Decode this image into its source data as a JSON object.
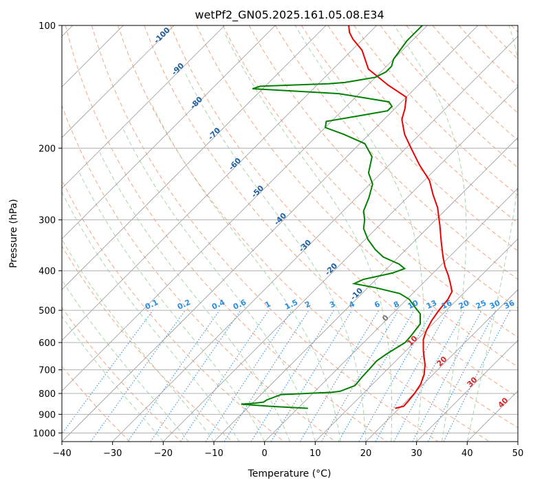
{
  "chart_data": {
    "type": "line",
    "title": "wetPf2_GN05.2025.161.05.08.E34",
    "xlabel": "Temperature (°C)",
    "ylabel": "Pressure (hPa)",
    "xlim": [
      -40,
      50
    ],
    "ylim": [
      1050,
      100
    ],
    "y_scale": "log",
    "x_ticks": [
      -40,
      -30,
      -20,
      -10,
      0,
      10,
      20,
      30,
      40,
      50
    ],
    "y_ticks": [
      100,
      200,
      300,
      400,
      500,
      600,
      700,
      800,
      900,
      1000
    ],
    "grid": true,
    "skew_note": "skew-T log-p diagram",
    "colors": {
      "temperature": "#ee0000",
      "dewpoint": "#008000",
      "isotherm": "#999999",
      "dry_adiabat": "#f4a582",
      "moist_adiabat": "#a6d6a6",
      "mixing_ratio": "#2b8fe0",
      "ccl_label": "#d62728"
    },
    "series": [
      {
        "name": "",
        "role": "temperature",
        "points": [
          [
            19.2,
            870
          ],
          [
            20.5,
            860
          ],
          [
            20.4,
            840
          ],
          [
            20.1,
            800
          ],
          [
            19.5,
            760
          ],
          [
            18.3,
            720
          ],
          [
            16.5,
            680
          ],
          [
            13.5,
            630
          ],
          [
            11.2,
            590
          ],
          [
            10.0,
            560
          ],
          [
            9.1,
            530
          ],
          [
            8.5,
            500
          ],
          [
            8.1,
            470
          ],
          [
            7.4,
            450
          ],
          [
            5.5,
            430
          ],
          [
            3.4,
            410
          ],
          [
            1.0,
            390
          ],
          [
            -1.2,
            370
          ],
          [
            -4.5,
            340
          ],
          [
            -8.0,
            310
          ],
          [
            -12.0,
            280
          ],
          [
            -15.5,
            260
          ],
          [
            -19.0,
            240
          ],
          [
            -24.0,
            220
          ],
          [
            -29.0,
            200
          ],
          [
            -33.0,
            185
          ],
          [
            -36.5,
            170
          ],
          [
            -38.0,
            160
          ],
          [
            -40.0,
            150
          ],
          [
            -46.0,
            140
          ],
          [
            -53.0,
            128
          ],
          [
            -58.0,
            115
          ],
          [
            -62.0,
            108
          ],
          [
            -64.0,
            104
          ],
          [
            -65.5,
            100
          ]
        ]
      },
      {
        "name": "",
        "role": "dewpoint",
        "points": [
          [
            2.0,
            870
          ],
          [
            -6.0,
            860
          ],
          [
            -12.0,
            850
          ],
          [
            -9.5,
            845
          ],
          [
            -8.0,
            840
          ],
          [
            -7.8,
            830
          ],
          [
            -6.0,
            805
          ],
          [
            3.5,
            795
          ],
          [
            5.0,
            790
          ],
          [
            6.8,
            765
          ],
          [
            6.5,
            730
          ],
          [
            6.4,
            700
          ],
          [
            6.2,
            665
          ],
          [
            6.8,
            640
          ],
          [
            7.3,
            625
          ],
          [
            8.2,
            600
          ],
          [
            8.0,
            575
          ],
          [
            7.5,
            540
          ],
          [
            5.5,
            510
          ],
          [
            3.0,
            490
          ],
          [
            0.5,
            470
          ],
          [
            -2.5,
            455
          ],
          [
            -8.5,
            440
          ],
          [
            -13.5,
            430
          ],
          [
            -12.5,
            420
          ],
          [
            -8.0,
            405
          ],
          [
            -6.5,
            395
          ],
          [
            -8.5,
            385
          ],
          [
            -13.0,
            370
          ],
          [
            -16.0,
            355
          ],
          [
            -19.5,
            335
          ],
          [
            -22.5,
            315
          ],
          [
            -24.0,
            300
          ],
          [
            -26.0,
            285
          ],
          [
            -27.5,
            265
          ],
          [
            -29.5,
            245
          ],
          [
            -32.5,
            230
          ],
          [
            -35.0,
            210
          ],
          [
            -39.0,
            195
          ],
          [
            -45.0,
            185
          ],
          [
            -50.0,
            178
          ],
          [
            -51.0,
            172
          ],
          [
            -45.0,
            166
          ],
          [
            -41.0,
            162
          ],
          [
            -41.0,
            158
          ],
          [
            -42.5,
            154
          ],
          [
            -54.0,
            147
          ],
          [
            -72.0,
            143
          ],
          [
            -71.0,
            141
          ],
          [
            -58.0,
            139
          ],
          [
            -55.0,
            138
          ],
          [
            -50.0,
            134
          ],
          [
            -49.0,
            130
          ],
          [
            -49.0,
            126
          ],
          [
            -50.0,
            121
          ],
          [
            -50.5,
            115
          ],
          [
            -51.0,
            109
          ],
          [
            -51.0,
            104
          ],
          [
            -51.0,
            100
          ]
        ]
      }
    ],
    "dry_adiabat_labels": [
      "-100",
      "-90",
      "-80",
      "-70",
      "-60",
      "-50",
      "-40",
      "-30",
      "-20",
      "-10"
    ],
    "mixing_ratio_labels": [
      "0.1",
      "0.2",
      "0.4",
      "0.6",
      "1",
      "1.5",
      "2",
      "3",
      "4",
      "6",
      "8",
      "10",
      "13",
      "16",
      "20",
      "25",
      "30",
      "36"
    ],
    "moist_adiabat_labels": [
      "0",
      "10",
      "20",
      "30",
      "40"
    ]
  }
}
